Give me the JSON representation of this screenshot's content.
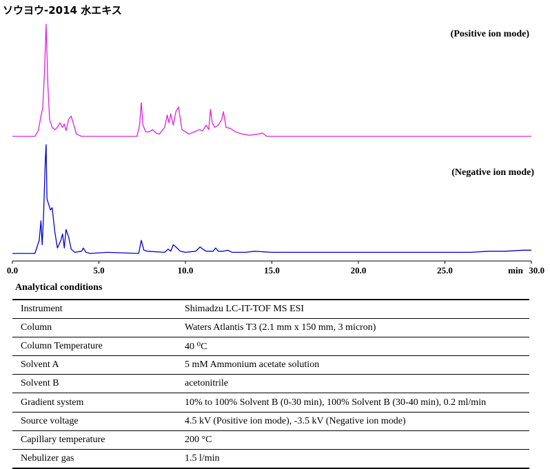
{
  "title": "ソウヨウ-2014 水エキス",
  "chart_data": {
    "type": "line",
    "xlabel": "min",
    "xlim": [
      0,
      30
    ],
    "x_ticks": [
      "0.0",
      "5.0",
      "10.0",
      "15.0",
      "20.0",
      "25.0",
      "30.0"
    ],
    "series": [
      {
        "name": "(Positive ion mode)",
        "color": "#e020e0",
        "x": [
          0,
          1.3,
          1.5,
          1.65,
          1.75,
          1.85,
          1.95,
          2.05,
          2.15,
          2.3,
          2.45,
          2.6,
          2.75,
          2.9,
          3.0,
          3.1,
          3.25,
          3.4,
          3.55,
          3.7,
          4.0,
          7.2,
          7.35,
          7.45,
          7.55,
          7.7,
          7.9,
          8.1,
          8.3,
          8.5,
          8.8,
          8.95,
          9.05,
          9.15,
          9.3,
          9.45,
          9.6,
          9.8,
          10.2,
          10.5,
          10.8,
          11.0,
          11.2,
          11.35,
          11.45,
          11.55,
          11.7,
          11.9,
          12.1,
          12.2,
          12.35,
          12.6,
          12.9,
          13.3,
          13.7,
          14.2,
          14.45,
          14.7,
          15.5,
          30
        ],
        "y": [
          0,
          0,
          0.05,
          0.18,
          0.25,
          0.55,
          1.0,
          0.45,
          0.15,
          0.08,
          0.06,
          0.08,
          0.12,
          0.08,
          0.11,
          0.05,
          0.15,
          0.18,
          0.1,
          0.02,
          0,
          0,
          0.1,
          0.3,
          0.1,
          0.04,
          0.04,
          0.06,
          0.03,
          0.02,
          0.08,
          0.19,
          0.12,
          0.2,
          0.1,
          0.22,
          0.26,
          0.06,
          0.02,
          0.04,
          0.06,
          0.05,
          0.1,
          0.06,
          0.24,
          0.12,
          0.08,
          0.1,
          0.15,
          0.22,
          0.08,
          0.07,
          0.04,
          0.02,
          0.01,
          0.02,
          0.03,
          0,
          0,
          0
        ]
      },
      {
        "name": "(Negative ion mode)",
        "color": "#0000cc",
        "x": [
          0,
          1.3,
          1.55,
          1.65,
          1.72,
          1.8,
          1.9,
          1.95,
          2.0,
          2.1,
          2.2,
          2.3,
          2.45,
          2.6,
          2.8,
          2.9,
          3.0,
          3.1,
          3.25,
          3.4,
          3.6,
          4.0,
          4.1,
          4.25,
          4.5,
          5.5,
          7.3,
          7.45,
          7.6,
          7.8,
          8.8,
          9.0,
          9.15,
          9.3,
          9.45,
          9.7,
          10.0,
          10.6,
          10.85,
          11.0,
          11.2,
          11.6,
          11.75,
          11.9,
          12.2,
          12.45,
          12.7,
          13.5,
          14.0,
          15.0,
          17.0,
          19.0,
          21.0,
          23.0,
          25.0,
          26.5,
          27.5,
          28.5,
          29.5,
          30
        ],
        "y": [
          0,
          0,
          0.12,
          0.3,
          0.08,
          0.35,
          0.85,
          1.0,
          0.5,
          0.45,
          0.4,
          0.42,
          0.2,
          0.05,
          0.12,
          0.18,
          0.05,
          0.22,
          0.15,
          0.04,
          0.01,
          0.02,
          0.05,
          0.01,
          0.0,
          0.01,
          0.0,
          0.12,
          0.03,
          0.02,
          0.01,
          0.04,
          0.02,
          0.08,
          0.06,
          0.02,
          0.01,
          0.02,
          0.06,
          0.04,
          0.02,
          0.02,
          0.05,
          0.02,
          0.02,
          0.03,
          0.01,
          0.01,
          0.02,
          0.01,
          0.01,
          0.01,
          0.01,
          0.01,
          0.01,
          0.01,
          0.02,
          0.02,
          0.03,
          0.03
        ]
      }
    ]
  },
  "conditions": {
    "title": "Analytical conditions",
    "rows": [
      {
        "key": "Instrument",
        "value": "Shimadzu LC-IT-TOF MS ESI"
      },
      {
        "key": "Column",
        "value": "Waters Atlantis T3 (2.1 mm x 150 mm, 3 micron)"
      },
      {
        "key": "Column Temperature",
        "value": "40 ⁰C"
      },
      {
        "key": "Solvent A",
        "value": "5 mM Ammonium acetate solution"
      },
      {
        "key": "Solvent B",
        "value": "acetonitrile"
      },
      {
        "key": "Gradient system",
        "value": "10% to 100% Solvent B (0-30 min), 100% Solvent B (30-40 min), 0.2 ml/min"
      },
      {
        "key": "Source voltage",
        "value": "4.5 kV (Positive ion mode), -3.5 kV (Negative ion mode)"
      },
      {
        "key": "Capillary temperature",
        "value": "200 °C"
      },
      {
        "key": "Nebulizer gas",
        "value": "1.5 l/min"
      }
    ]
  }
}
